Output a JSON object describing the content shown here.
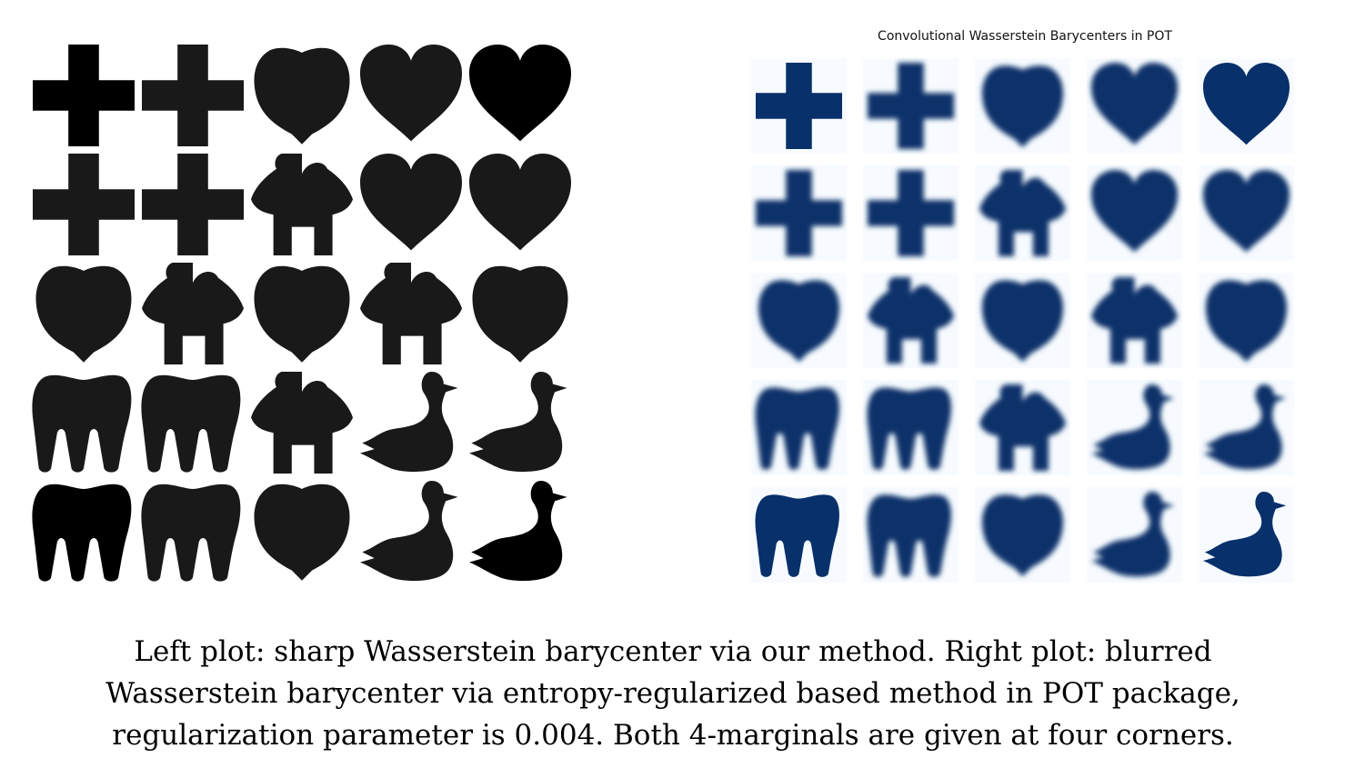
{
  "figure": {
    "right_title": "Convolutional Wasserstein Barycenters in POT",
    "colors": {
      "left_shape": "#000000",
      "right_shape": "#08306b",
      "right_background": "#f7fbff"
    },
    "grid": {
      "rows": 5,
      "cols": 5
    },
    "corner_shapes": {
      "top_left": "cross",
      "top_right": "heart",
      "bottom_left": "tooth",
      "bottom_right": "duck"
    }
  },
  "caption": {
    "line1": "Left plot: sharp Wasserstein barycenter via our method. Right plot: blurred",
    "line2": "Wasserstein barycenter via entropy-regularized based method in POT package,",
    "line3": "regularization parameter is 0.004. Both 4-marginals are given at four corners."
  }
}
